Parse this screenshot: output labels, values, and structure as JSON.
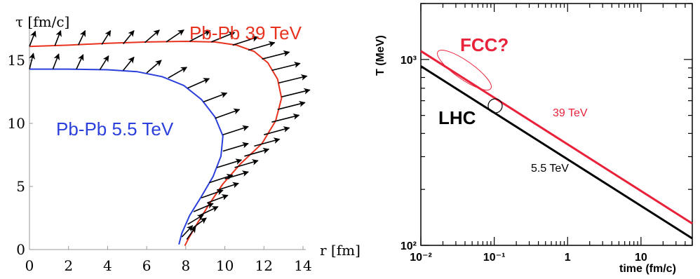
{
  "chart_data": [
    {
      "type": "line",
      "xlabel": "r [fm]",
      "ylabel": "τ [fm/c]",
      "xlim": [
        0,
        14
      ],
      "ylim": [
        0,
        18
      ],
      "x_ticks": [
        "0",
        "2",
        "4",
        "6",
        "8",
        "10",
        "12",
        "14"
      ],
      "y_ticks": [
        "0",
        "5",
        "10",
        "15"
      ],
      "grid": false,
      "series": [
        {
          "name": "Pb-Pb 39 TeV",
          "color": "#e8321e",
          "points": [
            [
              0,
              16.1
            ],
            [
              2,
              16.2
            ],
            [
              4,
              16.35
            ],
            [
              6,
              16.45
            ],
            [
              8,
              16.5
            ],
            [
              9.5,
              16.45
            ],
            [
              10.6,
              16.2
            ],
            [
              11.5,
              15.7
            ],
            [
              12.2,
              14.8
            ],
            [
              12.7,
              13.5
            ],
            [
              12.9,
              12
            ],
            [
              12.6,
              10.2
            ],
            [
              11.9,
              8.4
            ],
            [
              10.8,
              6.8
            ],
            [
              9.9,
              5.2
            ],
            [
              9.2,
              3.6
            ],
            [
              8.6,
              2.1
            ],
            [
              8.15,
              0.9
            ],
            [
              7.95,
              0.3
            ]
          ],
          "arrows": [
            [
              0,
              16.1,
              0.3,
              1.2
            ],
            [
              1.3,
              16.15,
              0.3,
              1.2
            ],
            [
              2.5,
              16.2,
              0.35,
              1.15
            ],
            [
              3.7,
              16.25,
              0.45,
              1.1
            ],
            [
              4.8,
              16.3,
              0.55,
              1.05
            ],
            [
              5.9,
              16.4,
              0.75,
              1
            ],
            [
              7,
              16.45,
              0.9,
              0.95
            ],
            [
              8.2,
              16.5,
              1.05,
              0.85
            ],
            [
              9.3,
              16.45,
              1.2,
              0.75
            ],
            [
              10.4,
              16.2,
              1.3,
              0.65
            ],
            [
              11.2,
              15.8,
              1.35,
              0.6
            ],
            [
              11.9,
              15.1,
              1.4,
              0.55
            ],
            [
              12.4,
              14.2,
              1.45,
              0.55
            ],
            [
              12.75,
              13.2,
              1.45,
              0.55
            ],
            [
              12.9,
              12.1,
              1.45,
              0.55
            ],
            [
              12.7,
              11.1,
              1.4,
              0.55
            ],
            [
              12.4,
              10.1,
              1.4,
              0.55
            ],
            [
              12,
              9.1,
              1.3,
              0.55
            ],
            [
              11.5,
              8.2,
              1.3,
              0.55
            ],
            [
              11,
              7.4,
              1.25,
              0.55
            ],
            [
              10.5,
              6.5,
              1.2,
              0.55
            ],
            [
              10,
              5.6,
              1.2,
              0.55
            ],
            [
              9.6,
              4.7,
              1.1,
              0.55
            ],
            [
              9.1,
              3.7,
              1.05,
              0.6
            ],
            [
              8.7,
              2.7,
              0.95,
              0.7
            ],
            [
              8.35,
              1.7,
              0.7,
              0.8
            ],
            [
              8.05,
              0.8,
              0.45,
              1
            ]
          ]
        },
        {
          "name": "Pb-Pb 5.5 TeV",
          "color": "#2a3fdb",
          "points": [
            [
              0,
              14.3
            ],
            [
              2,
              14.3
            ],
            [
              4,
              14.25
            ],
            [
              5.5,
              14.1
            ],
            [
              6.8,
              13.7
            ],
            [
              7.9,
              13
            ],
            [
              8.8,
              11.9
            ],
            [
              9.5,
              10.5
            ],
            [
              9.9,
              9
            ],
            [
              9.8,
              7.4
            ],
            [
              9.4,
              5.8
            ],
            [
              8.8,
              4.2
            ],
            [
              8.2,
              2.7
            ],
            [
              7.8,
              1.3
            ],
            [
              7.65,
              0.4
            ]
          ],
          "arrows": [
            [
              0,
              14.3,
              0.2,
              1.25
            ],
            [
              1.2,
              14.3,
              0.3,
              1.2
            ],
            [
              2.4,
              14.3,
              0.35,
              1.15
            ],
            [
              3.6,
              14.25,
              0.45,
              1.1
            ],
            [
              4.8,
              14.2,
              0.55,
              1.05
            ],
            [
              6,
              14,
              0.75,
              1
            ],
            [
              7.1,
              13.6,
              0.95,
              0.85
            ],
            [
              8.1,
              12.8,
              1.1,
              0.75
            ],
            [
              8.9,
              11.7,
              1.2,
              0.7
            ],
            [
              9.5,
              10.4,
              1.25,
              0.7
            ],
            [
              9.9,
              9.1,
              1.3,
              0.65
            ],
            [
              9.9,
              7.8,
              1.3,
              0.6
            ],
            [
              9.6,
              6.5,
              1.25,
              0.6
            ],
            [
              9.2,
              5.3,
              1.2,
              0.6
            ],
            [
              8.8,
              4.1,
              1.1,
              0.6
            ],
            [
              8.4,
              3,
              1,
              0.65
            ],
            [
              8.1,
              2,
              0.8,
              0.75
            ],
            [
              7.8,
              1,
              0.55,
              0.9
            ]
          ]
        }
      ]
    },
    {
      "type": "line",
      "xlabel": "time (fm/c)",
      "ylabel": "T (MeV)",
      "x_scale": "log",
      "y_scale": "log",
      "xlim": [
        0.01,
        50
      ],
      "ylim": [
        100,
        2000
      ],
      "x_ticks": [
        "10⁻²",
        "10⁻¹",
        "1",
        "10"
      ],
      "y_ticks": [
        "10³",
        "10²"
      ],
      "grid": false,
      "annotations": [
        "FCC?",
        "LHC"
      ],
      "series": [
        {
          "name": "39 TeV",
          "color": "#e8223a",
          "x": [
            0.01,
            50
          ],
          "y": [
            1110,
            131
          ]
        },
        {
          "name": "5.5 TeV",
          "color": "#000000",
          "x": [
            0.01,
            50
          ],
          "y": [
            920,
            109
          ]
        }
      ]
    }
  ]
}
